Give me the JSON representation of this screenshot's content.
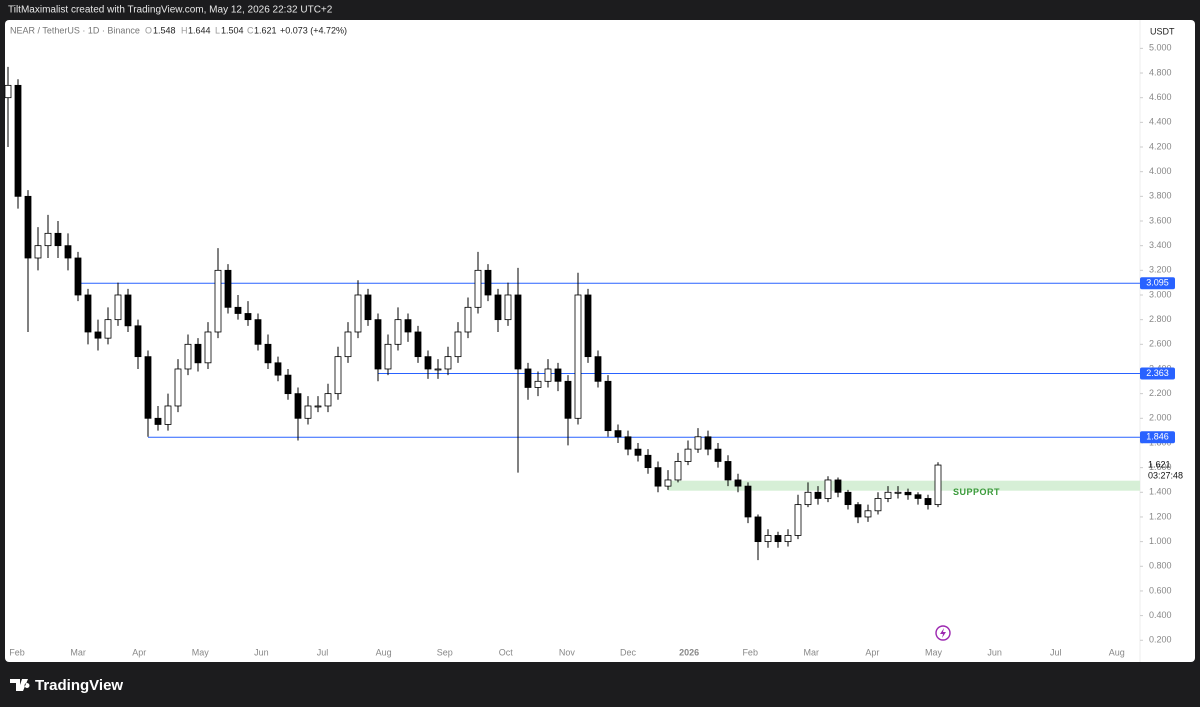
{
  "header": {
    "credit": "TiltMaximalist created with TradingView.com, May 12, 2026 22:32 UTC+2"
  },
  "footer": {
    "brand": "TradingView"
  },
  "chart_data": {
    "type": "candlestick",
    "symbol": "NEAR / TetherUS · 1D · Binance",
    "ohlc": {
      "o_label": "O",
      "open": 1.548,
      "h_label": "H",
      "high": 1.644,
      "l_label": "L",
      "low": 1.504,
      "c_label": "C",
      "close": 1.621,
      "change": "+0.073 (+4.72%)"
    },
    "currency": "USDT",
    "categories": [
      "Feb",
      "Mar",
      "Apr",
      "May",
      "Jun",
      "Jul",
      "Aug",
      "Sep",
      "Oct",
      "Nov",
      "Dec",
      "2026",
      "Feb",
      "Mar",
      "Apr",
      "May",
      "Jun",
      "Jul",
      "Aug"
    ],
    "up_color": "#ffffff",
    "down_color": "#000000",
    "outline_color": "#000000",
    "candles": [
      [
        4.6,
        4.85,
        4.2,
        4.7
      ],
      [
        4.7,
        4.75,
        3.7,
        3.8
      ],
      [
        3.8,
        3.85,
        2.7,
        3.3
      ],
      [
        3.3,
        3.55,
        3.2,
        3.4
      ],
      [
        3.4,
        3.65,
        3.3,
        3.5
      ],
      [
        3.5,
        3.6,
        3.3,
        3.4
      ],
      [
        3.4,
        3.5,
        3.2,
        3.3
      ],
      [
        3.3,
        3.35,
        2.95,
        3.0
      ],
      [
        3.0,
        3.05,
        2.6,
        2.7
      ],
      [
        2.7,
        2.8,
        2.55,
        2.65
      ],
      [
        2.65,
        2.9,
        2.6,
        2.8
      ],
      [
        2.8,
        3.1,
        2.75,
        3.0
      ],
      [
        3.0,
        3.05,
        2.7,
        2.75
      ],
      [
        2.75,
        2.8,
        2.4,
        2.5
      ],
      [
        2.5,
        2.55,
        1.85,
        2.0
      ],
      [
        2.0,
        2.1,
        1.9,
        1.95
      ],
      [
        1.95,
        2.2,
        1.9,
        2.1
      ],
      [
        2.1,
        2.48,
        2.05,
        2.4
      ],
      [
        2.4,
        2.68,
        2.35,
        2.6
      ],
      [
        2.6,
        2.65,
        2.38,
        2.45
      ],
      [
        2.45,
        2.78,
        2.4,
        2.7
      ],
      [
        2.7,
        3.38,
        2.65,
        3.2
      ],
      [
        3.2,
        3.25,
        2.85,
        2.9
      ],
      [
        2.9,
        3.0,
        2.8,
        2.85
      ],
      [
        2.85,
        2.95,
        2.75,
        2.8
      ],
      [
        2.8,
        2.85,
        2.55,
        2.6
      ],
      [
        2.6,
        2.68,
        2.4,
        2.45
      ],
      [
        2.45,
        2.5,
        2.3,
        2.35
      ],
      [
        2.35,
        2.4,
        2.15,
        2.2
      ],
      [
        2.2,
        2.25,
        1.82,
        2.0
      ],
      [
        2.0,
        2.18,
        1.95,
        2.1
      ],
      [
        2.1,
        2.18,
        2.05,
        2.1
      ],
      [
        2.1,
        2.28,
        2.05,
        2.2
      ],
      [
        2.2,
        2.58,
        2.15,
        2.5
      ],
      [
        2.5,
        2.78,
        2.45,
        2.7
      ],
      [
        2.7,
        3.12,
        2.65,
        3.0
      ],
      [
        3.0,
        3.05,
        2.75,
        2.8
      ],
      [
        2.8,
        2.85,
        2.3,
        2.4
      ],
      [
        2.4,
        2.68,
        2.35,
        2.6
      ],
      [
        2.6,
        2.9,
        2.55,
        2.8
      ],
      [
        2.8,
        2.85,
        2.62,
        2.7
      ],
      [
        2.7,
        2.75,
        2.45,
        2.5
      ],
      [
        2.5,
        2.55,
        2.32,
        2.4
      ],
      [
        2.4,
        2.48,
        2.32,
        2.4
      ],
      [
        2.4,
        2.58,
        2.35,
        2.5
      ],
      [
        2.5,
        2.78,
        2.45,
        2.7
      ],
      [
        2.7,
        2.98,
        2.65,
        2.9
      ],
      [
        2.9,
        3.35,
        2.85,
        3.2
      ],
      [
        3.2,
        3.25,
        2.95,
        3.0
      ],
      [
        3.0,
        3.05,
        2.7,
        2.8
      ],
      [
        2.8,
        3.1,
        2.75,
        3.0
      ],
      [
        3.0,
        3.22,
        1.56,
        2.4
      ],
      [
        2.4,
        2.45,
        2.15,
        2.25
      ],
      [
        2.25,
        2.38,
        2.18,
        2.3
      ],
      [
        2.3,
        2.48,
        2.25,
        2.4
      ],
      [
        2.4,
        2.45,
        2.22,
        2.3
      ],
      [
        2.3,
        2.35,
        1.78,
        2.0
      ],
      [
        2.0,
        3.18,
        1.95,
        3.0
      ],
      [
        3.0,
        3.05,
        2.45,
        2.5
      ],
      [
        2.5,
        2.55,
        2.25,
        2.3
      ],
      [
        2.3,
        2.35,
        1.85,
        1.9
      ],
      [
        1.9,
        1.95,
        1.8,
        1.85
      ],
      [
        1.85,
        1.9,
        1.7,
        1.75
      ],
      [
        1.75,
        1.8,
        1.65,
        1.7
      ],
      [
        1.7,
        1.75,
        1.55,
        1.6
      ],
      [
        1.6,
        1.65,
        1.4,
        1.45
      ],
      [
        1.45,
        1.58,
        1.42,
        1.5
      ],
      [
        1.5,
        1.72,
        1.48,
        1.65
      ],
      [
        1.65,
        1.82,
        1.62,
        1.75
      ],
      [
        1.75,
        1.92,
        1.72,
        1.85
      ],
      [
        1.85,
        1.9,
        1.7,
        1.75
      ],
      [
        1.75,
        1.8,
        1.6,
        1.65
      ],
      [
        1.65,
        1.7,
        1.45,
        1.5
      ],
      [
        1.5,
        1.55,
        1.4,
        1.45
      ],
      [
        1.45,
        1.48,
        1.15,
        1.2
      ],
      [
        1.2,
        1.22,
        0.85,
        1.0
      ],
      [
        1.0,
        1.1,
        0.95,
        1.05
      ],
      [
        1.05,
        1.08,
        0.95,
        1.0
      ],
      [
        1.0,
        1.1,
        0.96,
        1.05
      ],
      [
        1.05,
        1.38,
        1.02,
        1.3
      ],
      [
        1.3,
        1.48,
        1.28,
        1.4
      ],
      [
        1.4,
        1.45,
        1.3,
        1.35
      ],
      [
        1.35,
        1.53,
        1.32,
        1.5
      ],
      [
        1.5,
        1.52,
        1.36,
        1.4
      ],
      [
        1.4,
        1.42,
        1.26,
        1.3
      ],
      [
        1.3,
        1.32,
        1.15,
        1.2
      ],
      [
        1.2,
        1.3,
        1.16,
        1.25
      ],
      [
        1.25,
        1.4,
        1.22,
        1.35
      ],
      [
        1.35,
        1.45,
        1.32,
        1.4
      ],
      [
        1.4,
        1.45,
        1.35,
        1.4
      ],
      [
        1.4,
        1.43,
        1.34,
        1.38
      ],
      [
        1.38,
        1.4,
        1.3,
        1.35
      ],
      [
        1.35,
        1.38,
        1.26,
        1.3
      ],
      [
        1.3,
        1.644,
        1.28,
        1.621
      ]
    ],
    "levels": [
      3.095,
      2.363,
      1.846
    ],
    "level_color": "#2962ff",
    "zone": {
      "label": "SUPPORT",
      "low": 1.413,
      "high": 1.494,
      "color": "#d6efd6",
      "label_color": "#3a9a3a"
    },
    "last_price": 1.621,
    "countdown": "03:27:48",
    "ylim": [
      0.04,
      5.23
    ],
    "yticks": [
      {
        "value": 0.2,
        "label": "0.200"
      },
      {
        "value": 0.4,
        "label": "0.400"
      },
      {
        "value": 0.6,
        "label": "0.600"
      },
      {
        "value": 0.8,
        "label": "0.800"
      },
      {
        "value": 1,
        "label": "1.000"
      },
      {
        "value": 1.2,
        "label": "1.200"
      },
      {
        "value": 1.4,
        "label": "1.400"
      },
      {
        "value": 1.6,
        "label": "1.600"
      },
      {
        "value": 1.8,
        "label": "1.800"
      },
      {
        "value": 2,
        "label": "2.000"
      },
      {
        "value": 2.2,
        "label": "2.200"
      },
      {
        "value": 2.4,
        "label": "2.400"
      },
      {
        "value": 2.6,
        "label": "2.600"
      },
      {
        "value": 2.8,
        "label": "2.800"
      },
      {
        "value": 3,
        "label": "3.000"
      },
      {
        "value": 3.2,
        "label": "3.200"
      },
      {
        "value": 3.4,
        "label": "3.400"
      },
      {
        "value": 3.6,
        "label": "3.600"
      },
      {
        "value": 3.8,
        "label": "3.800"
      },
      {
        "value": 4,
        "label": "4.000"
      },
      {
        "value": 4.2,
        "label": "4.200"
      },
      {
        "value": 4.4,
        "label": "4.400"
      },
      {
        "value": 4.6,
        "label": "4.600"
      },
      {
        "value": 4.8,
        "label": "4.800"
      },
      {
        "value": 5,
        "label": "5.000"
      }
    ]
  }
}
